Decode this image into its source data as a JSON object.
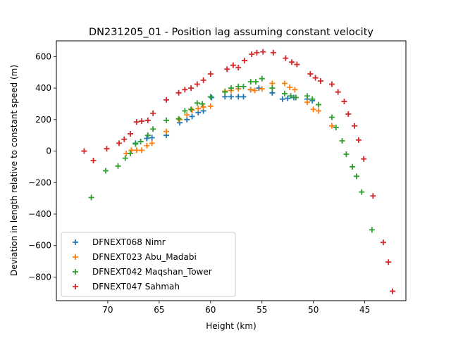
{
  "chart_data": {
    "type": "scatter",
    "title": "DN231205_01 - Position lag assuming constant velocity",
    "xlabel": "Height (km)",
    "ylabel": "Deviation in length relative to constant speed (m)",
    "xlim": [
      75,
      41
    ],
    "ylim": [
      -950,
      700
    ],
    "x_ticks": [
      70,
      65,
      60,
      55,
      50,
      45
    ],
    "y_ticks": [
      -800,
      -600,
      -400,
      -200,
      0,
      200,
      400,
      600
    ],
    "x_ticks_labels": [
      "70",
      "65",
      "60",
      "55",
      "50",
      "45"
    ],
    "y_ticks_labels": [
      "−800",
      "−600",
      "−400",
      "−200",
      "0",
      "200",
      "400",
      "600"
    ],
    "marker": "plus",
    "grid": false,
    "legend_position": "lower-left",
    "series": [
      {
        "name": "DFNEXT068 Nimr",
        "color": "#1f77b4",
        "points": [
          [
            67.3,
            50
          ],
          [
            66.8,
            60
          ],
          [
            66.2,
            80
          ],
          [
            65.7,
            85
          ],
          [
            64.3,
            100
          ],
          [
            63.0,
            180
          ],
          [
            62.3,
            200
          ],
          [
            61.8,
            220
          ],
          [
            61.2,
            245
          ],
          [
            60.7,
            255
          ],
          [
            59.9,
            340
          ],
          [
            58.6,
            345
          ],
          [
            58.0,
            345
          ],
          [
            57.3,
            345
          ],
          [
            56.8,
            345
          ],
          [
            56.1,
            390
          ],
          [
            55.3,
            400
          ],
          [
            54.0,
            370
          ],
          [
            53.0,
            330
          ],
          [
            52.5,
            335
          ],
          [
            51.9,
            340
          ],
          [
            50.6,
            330
          ],
          [
            50.1,
            320
          ]
        ]
      },
      {
        "name": "DFNEXT023 Abu_Madabi",
        "color": "#ff7f0e",
        "points": [
          [
            68.2,
            -15
          ],
          [
            67.7,
            5
          ],
          [
            67.2,
            5
          ],
          [
            66.7,
            5
          ],
          [
            66.2,
            35
          ],
          [
            65.7,
            50
          ],
          [
            64.3,
            125
          ],
          [
            63.0,
            200
          ],
          [
            62.3,
            230
          ],
          [
            61.8,
            260
          ],
          [
            61.2,
            270
          ],
          [
            60.7,
            280
          ],
          [
            60.0,
            285
          ],
          [
            58.6,
            380
          ],
          [
            58.0,
            385
          ],
          [
            57.3,
            395
          ],
          [
            56.1,
            390
          ],
          [
            55.7,
            385
          ],
          [
            55.0,
            395
          ],
          [
            54.0,
            430
          ],
          [
            52.8,
            430
          ],
          [
            52.3,
            405
          ],
          [
            51.8,
            390
          ],
          [
            50.6,
            310
          ],
          [
            50.0,
            265
          ],
          [
            49.5,
            255
          ],
          [
            48.2,
            160
          ]
        ]
      },
      {
        "name": "DFNEXT042 Maqshan_Tower",
        "color": "#2ca02c",
        "points": [
          [
            71.6,
            -295
          ],
          [
            70.2,
            -125
          ],
          [
            69.0,
            -95
          ],
          [
            68.3,
            -45
          ],
          [
            67.8,
            -15
          ],
          [
            67.3,
            45
          ],
          [
            66.8,
            60
          ],
          [
            66.1,
            100
          ],
          [
            65.6,
            140
          ],
          [
            64.3,
            195
          ],
          [
            63.1,
            205
          ],
          [
            62.5,
            255
          ],
          [
            61.9,
            265
          ],
          [
            61.3,
            305
          ],
          [
            60.8,
            300
          ],
          [
            60.0,
            345
          ],
          [
            58.6,
            375
          ],
          [
            58.0,
            400
          ],
          [
            57.3,
            410
          ],
          [
            56.8,
            410
          ],
          [
            56.1,
            440
          ],
          [
            55.6,
            440
          ],
          [
            55.0,
            460
          ],
          [
            54.0,
            400
          ],
          [
            52.8,
            365
          ],
          [
            52.2,
            350
          ],
          [
            51.7,
            340
          ],
          [
            50.6,
            350
          ],
          [
            50.1,
            330
          ],
          [
            49.5,
            295
          ],
          [
            48.2,
            215
          ],
          [
            47.8,
            150
          ],
          [
            47.2,
            65
          ],
          [
            46.8,
            -20
          ],
          [
            46.2,
            -100
          ],
          [
            45.8,
            -160
          ],
          [
            45.3,
            -260
          ],
          [
            44.3,
            -500
          ]
        ]
      },
      {
        "name": "DFNEXT047 Sahmah",
        "color": "#d62728",
        "points": [
          [
            72.3,
            0
          ],
          [
            71.4,
            -60
          ],
          [
            70.1,
            15
          ],
          [
            68.9,
            50
          ],
          [
            68.4,
            75
          ],
          [
            67.8,
            110
          ],
          [
            67.2,
            185
          ],
          [
            66.7,
            190
          ],
          [
            66.1,
            195
          ],
          [
            65.6,
            240
          ],
          [
            64.3,
            325
          ],
          [
            63.1,
            370
          ],
          [
            62.5,
            390
          ],
          [
            61.9,
            400
          ],
          [
            61.3,
            425
          ],
          [
            60.7,
            450
          ],
          [
            60.0,
            490
          ],
          [
            58.4,
            520
          ],
          [
            57.8,
            545
          ],
          [
            57.3,
            530
          ],
          [
            56.7,
            575
          ],
          [
            56.0,
            615
          ],
          [
            55.5,
            625
          ],
          [
            54.9,
            630
          ],
          [
            53.9,
            625
          ],
          [
            52.7,
            590
          ],
          [
            52.1,
            565
          ],
          [
            51.6,
            550
          ],
          [
            50.3,
            490
          ],
          [
            49.8,
            465
          ],
          [
            49.3,
            445
          ],
          [
            48.2,
            425
          ],
          [
            47.6,
            375
          ],
          [
            47.0,
            315
          ],
          [
            46.6,
            235
          ],
          [
            46.0,
            160
          ],
          [
            45.6,
            70
          ],
          [
            45.1,
            -50
          ],
          [
            44.2,
            -285
          ],
          [
            43.2,
            -580
          ],
          [
            42.7,
            -705
          ],
          [
            42.3,
            -890
          ]
        ]
      }
    ]
  }
}
